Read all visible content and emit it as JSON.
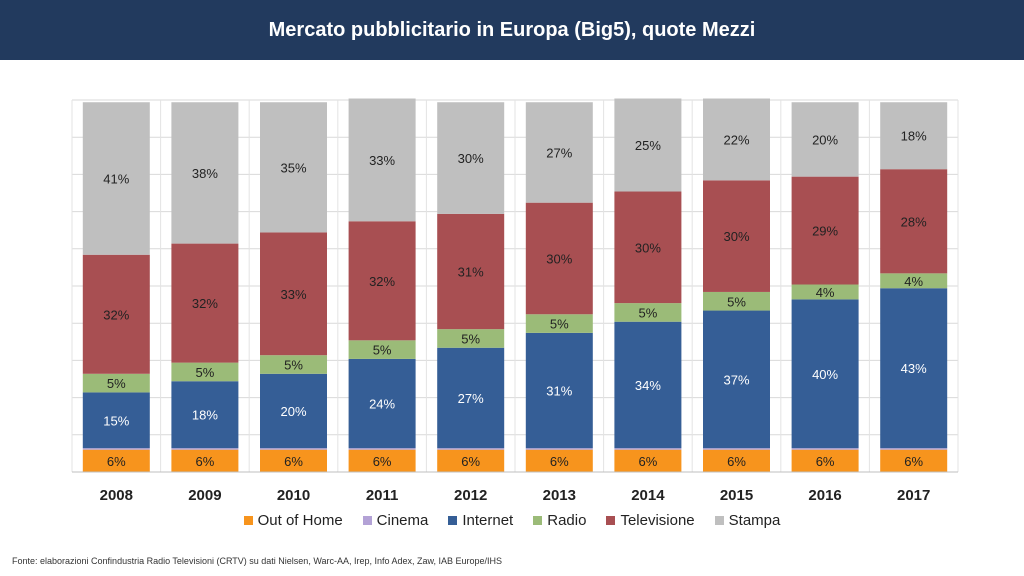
{
  "header": {
    "title": "Mercato pubblicitario in Europa (Big5), quote Mezzi"
  },
  "chart_data": {
    "type": "bar",
    "stacked": true,
    "percent_stacked": true,
    "categories": [
      "2008",
      "2009",
      "2010",
      "2011",
      "2012",
      "2013",
      "2014",
      "2015",
      "2016",
      "2017"
    ],
    "series": [
      {
        "name": "Out of Home",
        "color": "#f7941d",
        "values": [
          6,
          6,
          6,
          6,
          6,
          6,
          6,
          6,
          6,
          6
        ],
        "labels": [
          "6%",
          "6%",
          "6%",
          "6%",
          "6%",
          "6%",
          "6%",
          "6%",
          "6%",
          "6%"
        ]
      },
      {
        "name": "Cinema",
        "color": "#b3a2d6",
        "values": [
          0.4,
          0.4,
          0.4,
          0.4,
          0.4,
          0.4,
          0.4,
          0.4,
          0.4,
          0.4
        ],
        "labels": []
      },
      {
        "name": "Internet",
        "color": "#355e96",
        "values": [
          15,
          18,
          20,
          24,
          27,
          31,
          34,
          37,
          40,
          43
        ],
        "labels": [
          "15%",
          "18%",
          "20%",
          "24%",
          "27%",
          "31%",
          "34%",
          "37%",
          "40%",
          "43%"
        ]
      },
      {
        "name": "Radio",
        "color": "#9bbb78",
        "values": [
          5,
          5,
          5,
          5,
          5,
          5,
          5,
          5,
          4,
          4
        ],
        "labels": [
          "5%",
          "5%",
          "5%",
          "5%",
          "5%",
          "5%",
          "5%",
          "5%",
          "4%",
          "4%"
        ]
      },
      {
        "name": "Televisione",
        "color": "#a84f52",
        "values": [
          32,
          32,
          33,
          32,
          31,
          30,
          30,
          30,
          29,
          28
        ],
        "labels": [
          "32%",
          "32%",
          "33%",
          "32%",
          "31%",
          "30%",
          "30%",
          "30%",
          "29%",
          "28%"
        ]
      },
      {
        "name": "Stampa",
        "color": "#bfbfbf",
        "values": [
          41,
          38,
          35,
          33,
          30,
          27,
          25,
          22,
          20,
          18
        ],
        "labels": [
          "41%",
          "38%",
          "35%",
          "33%",
          "30%",
          "27%",
          "25%",
          "22%",
          "20%",
          "18%"
        ]
      }
    ],
    "ylim": [
      0,
      100
    ],
    "grid": true,
    "legend_position": "bottom"
  },
  "source": "Fonte: elaborazioni Confindustria Radio Televisioni (CRTV) su dati Nielsen, Warc-AA, Irep, Info Adex, Zaw, IAB Europe/IHS"
}
